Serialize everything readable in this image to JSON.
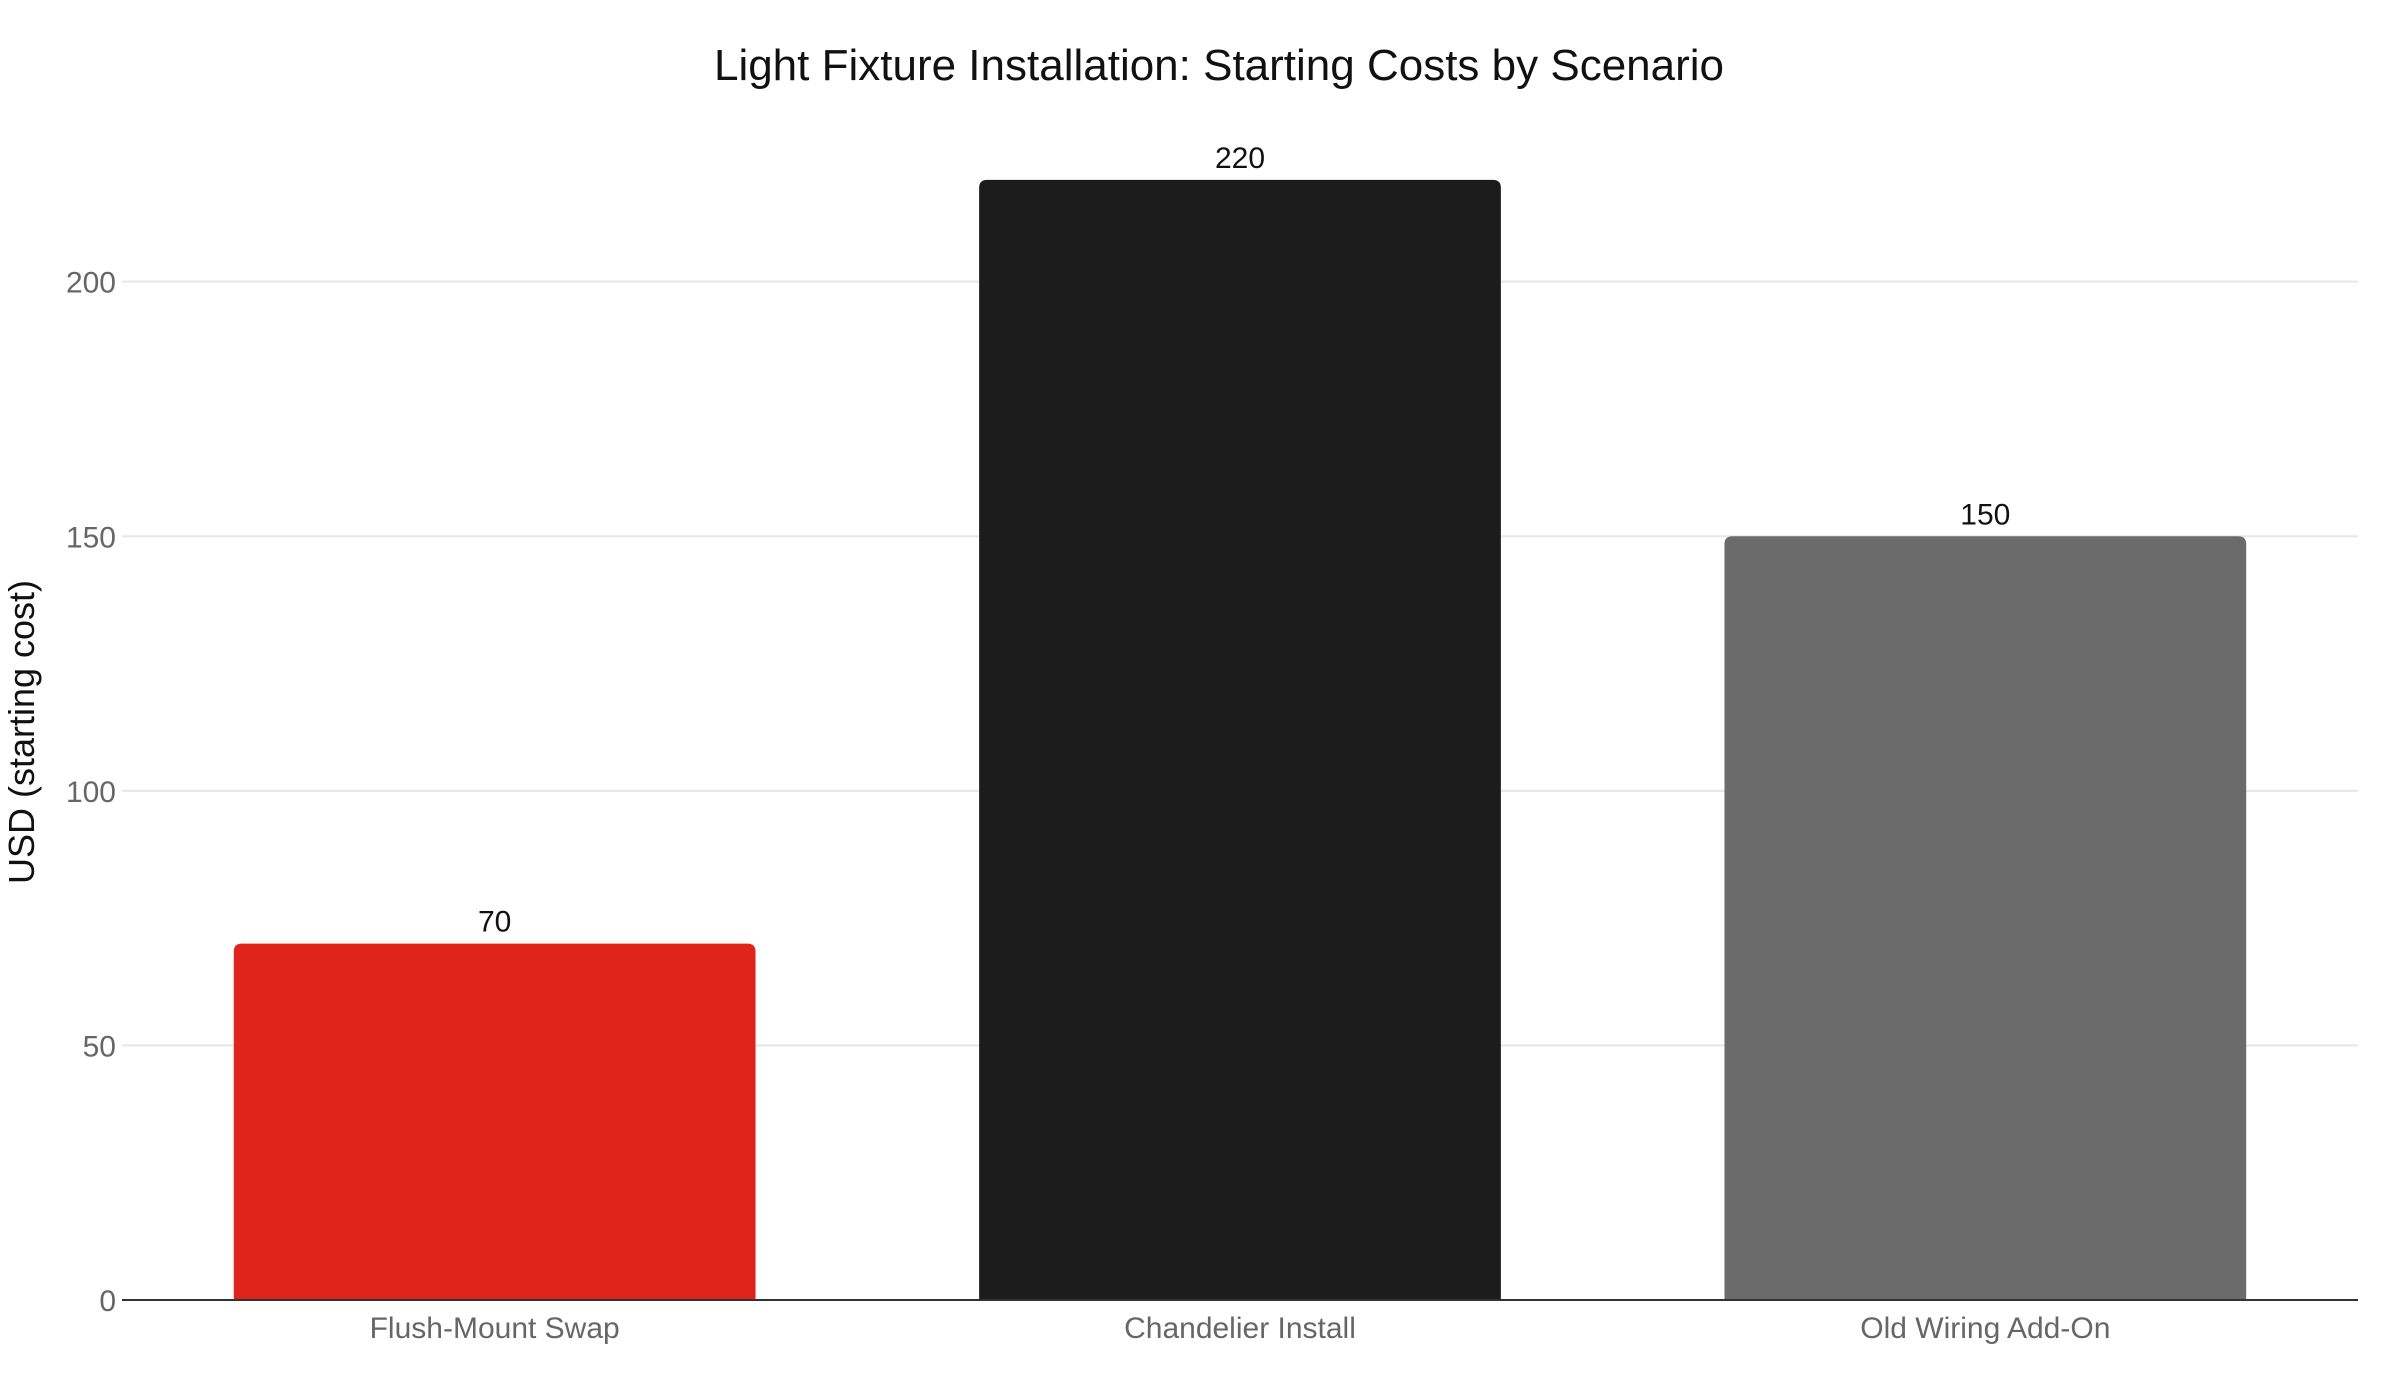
{
  "chart_data": {
    "type": "bar",
    "title": "Light Fixture Installation: Starting Costs by Scenario",
    "xlabel": "",
    "ylabel": "USD (starting cost)",
    "categories": [
      "Flush-Mount Swap",
      "Chandelier Install",
      "Old Wiring Add-On"
    ],
    "values": [
      70,
      220,
      150
    ],
    "data_labels": [
      "70",
      "220",
      "150"
    ],
    "colors": [
      "#e0241b",
      "#1c1c1c",
      "#6b6b6b"
    ],
    "ylim": [
      0,
      240
    ],
    "yticks": [
      0,
      50,
      100,
      150,
      200
    ],
    "ytick_labels": [
      "0",
      "50",
      "100",
      "150",
      "200"
    ],
    "grid": true,
    "legend": false
  }
}
